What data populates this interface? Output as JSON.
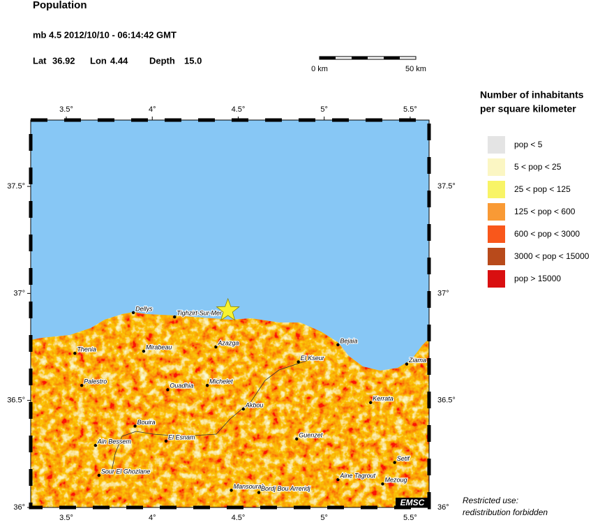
{
  "header": {
    "title": "Population",
    "event": "mb 4.5  2012/10/10 - 06:14:42 GMT",
    "lat_label": "Lat",
    "lat": 36.92,
    "lon_label": "Lon",
    "lon": 4.44,
    "depth_label": "Depth",
    "depth": "15.0"
  },
  "scale_bar": {
    "start": "0 km",
    "end": "50 km"
  },
  "map": {
    "xlim": [
      3.293,
      5.61
    ],
    "ylim": [
      36.0,
      37.81
    ],
    "xticks": [
      {
        "value": 3.5,
        "label": "3.5°"
      },
      {
        "value": 4,
        "label": "4°"
      },
      {
        "value": 4.5,
        "label": "4.5°"
      },
      {
        "value": 5,
        "label": "5°"
      },
      {
        "value": 5.5,
        "label": "5.5°"
      }
    ],
    "yticks": [
      {
        "value": 36,
        "label": "36°"
      },
      {
        "value": 36.5,
        "label": "36.5°"
      },
      {
        "value": 37,
        "label": "37°"
      },
      {
        "value": 37.5,
        "label": "37.5°"
      }
    ],
    "logo": "EMSC",
    "cities": [
      {
        "name": "Dellys",
        "lon": 3.89,
        "lat": 36.91
      },
      {
        "name": "Tighzirt-Sur-Mer",
        "lon": 4.13,
        "lat": 36.89
      },
      {
        "name": "Bejaia",
        "lon": 5.08,
        "lat": 36.76
      },
      {
        "name": "Thenia",
        "lon": 3.55,
        "lat": 36.72
      },
      {
        "name": "Mirabeau",
        "lon": 3.95,
        "lat": 36.73
      },
      {
        "name": "Azazga",
        "lon": 4.37,
        "lat": 36.75
      },
      {
        "name": "El Kseur",
        "lon": 4.85,
        "lat": 36.68
      },
      {
        "name": "Ziama",
        "lon": 5.48,
        "lat": 36.67
      },
      {
        "name": "Palestro",
        "lon": 3.59,
        "lat": 36.57
      },
      {
        "name": "Ouadhia",
        "lon": 4.09,
        "lat": 36.55
      },
      {
        "name": "Michelet",
        "lon": 4.32,
        "lat": 36.57
      },
      {
        "name": "Akbou",
        "lon": 4.53,
        "lat": 36.46
      },
      {
        "name": "Kerrata",
        "lon": 5.27,
        "lat": 36.49
      },
      {
        "name": "Bouira",
        "lon": 3.9,
        "lat": 36.38
      },
      {
        "name": "El Esnam",
        "lon": 4.08,
        "lat": 36.31
      },
      {
        "name": "Ain Bessem",
        "lon": 3.67,
        "lat": 36.29
      },
      {
        "name": "Guenzet",
        "lon": 4.84,
        "lat": 36.32
      },
      {
        "name": "Setif",
        "lon": 5.41,
        "lat": 36.21
      },
      {
        "name": "Sour El Ghozlane",
        "lon": 3.69,
        "lat": 36.15
      },
      {
        "name": "Aine Tagrout",
        "lon": 5.08,
        "lat": 36.13
      },
      {
        "name": "Mezoug",
        "lon": 5.34,
        "lat": 36.11
      },
      {
        "name": "Mansourah",
        "lon": 4.46,
        "lat": 36.08
      },
      {
        "name": "Bordj Bou Arreridj",
        "lon": 4.62,
        "lat": 36.07
      }
    ]
  },
  "legend": {
    "title": [
      "Number of inhabitants",
      "per square kilometer"
    ],
    "items": [
      {
        "label": "pop < 5",
        "color": "#e4e4e4"
      },
      {
        "label": "5 < pop < 25",
        "color": "#fbf6c3"
      },
      {
        "label": "25 < pop < 125",
        "color": "#f8f466"
      },
      {
        "label": "125 < pop < 600",
        "color": "#f99a35"
      },
      {
        "label": "600 < pop < 3000",
        "color": "#f9571b"
      },
      {
        "label": "3000 < pop < 15000",
        "color": "#b84a1b"
      },
      {
        "label": "pop > 15000",
        "color": "#d90f10"
      }
    ]
  },
  "footnote": [
    "Restricted use:",
    "redistribution forbidden"
  ]
}
